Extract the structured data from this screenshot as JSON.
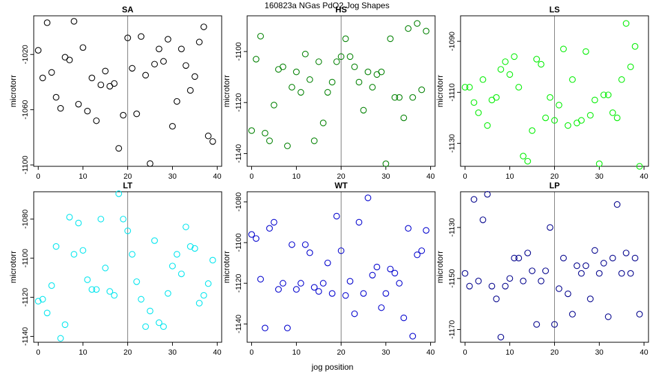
{
  "figure": {
    "title": "160823a   NGas PdO2 Jog Shapes",
    "xlabel": "jog position"
  },
  "chart_data": [
    {
      "type": "scatter",
      "title": "SA",
      "ylabel": "microtorr",
      "color": "#000000",
      "xlim": [
        -1,
        41
      ],
      "ylim": [
        -1101,
        -992
      ],
      "vline": 20,
      "xticks": [
        0,
        10,
        20,
        30,
        40
      ],
      "yticks": [
        -1100,
        -1060,
        -1020
      ],
      "x": [
        0,
        1,
        2,
        3,
        4,
        5,
        6,
        7,
        8,
        9,
        10,
        11,
        12,
        13,
        14,
        15,
        16,
        17,
        18,
        19,
        20,
        21,
        22,
        23,
        24,
        25,
        26,
        27,
        28,
        29,
        30,
        31,
        32,
        33,
        34,
        35,
        36,
        37,
        38,
        39
      ],
      "y": [
        -1017,
        -1037,
        -997,
        -1033,
        -1051,
        -1059,
        -1022,
        -1024,
        -996,
        -1056,
        -1015,
        -1061,
        -1037,
        -1068,
        -1042,
        -1032,
        -1043,
        -1041,
        -1088,
        -1064,
        -1008,
        -1030,
        -1063,
        -1007,
        -1035,
        -1099,
        -1027,
        -1016,
        -1025,
        -1009,
        -1072,
        -1054,
        -1016,
        -1028,
        -1046,
        -1036,
        -1011,
        -1000,
        -1079,
        -1083
      ]
    },
    {
      "type": "scatter",
      "title": "HS",
      "ylabel": "microtorr",
      "color": "#008000",
      "xlim": [
        -1,
        41
      ],
      "ylim": [
        -1145,
        -1086
      ],
      "vline": 20,
      "xticks": [
        0,
        10,
        20,
        30,
        40
      ],
      "yticks": [
        -1140,
        -1120,
        -1100
      ],
      "x": [
        0,
        1,
        2,
        3,
        4,
        5,
        6,
        7,
        8,
        9,
        10,
        11,
        12,
        13,
        14,
        15,
        16,
        17,
        18,
        19,
        20,
        21,
        22,
        23,
        24,
        25,
        26,
        27,
        28,
        29,
        30,
        31,
        32,
        33,
        34,
        35,
        36,
        37,
        38,
        39
      ],
      "y": [
        -1131,
        -1103,
        -1094,
        -1132,
        -1135,
        -1121,
        -1107,
        -1106,
        -1137,
        -1114,
        -1108,
        -1116,
        -1101,
        -1111,
        -1135,
        -1104,
        -1128,
        -1116,
        -1112,
        -1104,
        -1102,
        -1095,
        -1102,
        -1106,
        -1112,
        -1123,
        -1108,
        -1114,
        -1109,
        -1108,
        -1144,
        -1095,
        -1118,
        -1118,
        -1126,
        -1091,
        -1118,
        -1089,
        -1115,
        -1092
      ]
    },
    {
      "type": "scatter",
      "title": "LS",
      "ylabel": "microtorr",
      "color": "#00ee00",
      "xlim": [
        -1,
        41
      ],
      "ylim": [
        -1139,
        -1080
      ],
      "vline": 20,
      "xticks": [
        0,
        10,
        20,
        30,
        40
      ],
      "yticks": [
        -1130,
        -1110,
        -1090
      ],
      "x": [
        0,
        1,
        2,
        3,
        4,
        5,
        6,
        7,
        8,
        9,
        10,
        11,
        12,
        13,
        14,
        15,
        16,
        17,
        18,
        19,
        20,
        21,
        22,
        23,
        24,
        25,
        26,
        27,
        28,
        29,
        30,
        31,
        32,
        33,
        34,
        35,
        36,
        37,
        38,
        39
      ],
      "y": [
        -1108,
        -1108,
        -1114,
        -1118,
        -1105,
        -1123,
        -1113,
        -1112,
        -1101,
        -1098,
        -1103,
        -1096,
        -1108,
        -1135,
        -1137,
        -1125,
        -1097,
        -1099,
        -1120,
        -1112,
        -1121,
        -1115,
        -1093,
        -1123,
        -1105,
        -1122,
        -1121,
        -1094,
        -1119,
        -1113,
        -1138,
        -1111,
        -1111,
        -1118,
        -1120,
        -1105,
        -1083,
        -1100,
        -1092,
        -1139
      ]
    },
    {
      "type": "scatter",
      "title": "LT",
      "ylabel": "microtorr",
      "color": "#00e5ee",
      "xlim": [
        -1,
        41
      ],
      "ylim": [
        -1143,
        -1066
      ],
      "vline": 20,
      "xticks": [
        0,
        10,
        20,
        30,
        40
      ],
      "yticks": [
        -1140,
        -1120,
        -1100,
        -1080
      ],
      "x": [
        0,
        1,
        2,
        3,
        4,
        5,
        6,
        7,
        8,
        9,
        10,
        11,
        12,
        13,
        14,
        15,
        16,
        17,
        18,
        19,
        20,
        21,
        22,
        23,
        24,
        25,
        26,
        27,
        28,
        29,
        30,
        31,
        32,
        33,
        34,
        35,
        36,
        37,
        38,
        39
      ],
      "y": [
        -1122,
        -1121,
        -1128,
        -1114,
        -1094,
        -1141,
        -1134,
        -1079,
        -1098,
        -1082,
        -1096,
        -1111,
        -1116,
        -1116,
        -1080,
        -1105,
        -1117,
        -1119,
        -1067,
        -1080,
        -1086,
        -1098,
        -1112,
        -1121,
        -1135,
        -1127,
        -1091,
        -1133,
        -1135,
        -1118,
        -1104,
        -1098,
        -1108,
        -1084,
        -1094,
        -1095,
        -1123,
        -1119,
        -1113,
        -1101
      ]
    },
    {
      "type": "scatter",
      "title": "WT",
      "ylabel": "microtorr",
      "color": "#0000cd",
      "xlim": [
        -1,
        41
      ],
      "ylim": [
        -1149,
        -1075
      ],
      "vline": 20,
      "xticks": [
        0,
        10,
        20,
        30,
        40
      ],
      "yticks": [
        -1140,
        -1120,
        -1100,
        -1080
      ],
      "x": [
        0,
        1,
        2,
        3,
        4,
        5,
        6,
        7,
        8,
        9,
        10,
        11,
        12,
        13,
        14,
        15,
        16,
        17,
        18,
        19,
        20,
        21,
        22,
        23,
        24,
        25,
        26,
        27,
        28,
        29,
        30,
        31,
        32,
        33,
        34,
        35,
        36,
        37,
        38,
        39
      ],
      "y": [
        -1096,
        -1098,
        -1118,
        -1142,
        -1093,
        -1090,
        -1123,
        -1120,
        -1142,
        -1101,
        -1123,
        -1120,
        -1101,
        -1105,
        -1122,
        -1124,
        -1120,
        -1110,
        -1125,
        -1087,
        -1104,
        -1126,
        -1119,
        -1135,
        -1090,
        -1125,
        -1078,
        -1116,
        -1112,
        -1132,
        -1125,
        -1113,
        -1115,
        -1120,
        -1137,
        -1093,
        -1146,
        -1106,
        -1104,
        -1094
      ]
    },
    {
      "type": "scatter",
      "title": "LP",
      "ylabel": "microtorr",
      "color": "#00008b",
      "xlim": [
        -1,
        41
      ],
      "ylim": [
        -1175,
        -1116
      ],
      "vline": 20,
      "xticks": [
        0,
        10,
        20,
        30,
        40
      ],
      "yticks": [
        -1170,
        -1150,
        -1130
      ],
      "x": [
        0,
        1,
        2,
        3,
        4,
        5,
        6,
        7,
        8,
        9,
        10,
        11,
        12,
        13,
        14,
        15,
        16,
        17,
        18,
        19,
        20,
        21,
        22,
        23,
        24,
        25,
        26,
        27,
        28,
        29,
        30,
        31,
        32,
        33,
        34,
        35,
        36,
        37,
        38,
        39
      ],
      "y": [
        -1148,
        -1153,
        -1119,
        -1151,
        -1127,
        -1117,
        -1153,
        -1158,
        -1173,
        -1153,
        -1150,
        -1142,
        -1142,
        -1151,
        -1140,
        -1147,
        -1168,
        -1151,
        -1147,
        -1130,
        -1168,
        -1154,
        -1142,
        -1156,
        -1164,
        -1145,
        -1148,
        -1145,
        -1158,
        -1139,
        -1148,
        -1144,
        -1165,
        -1142,
        -1121,
        -1148,
        -1140,
        -1148,
        -1142,
        -1164
      ]
    }
  ]
}
